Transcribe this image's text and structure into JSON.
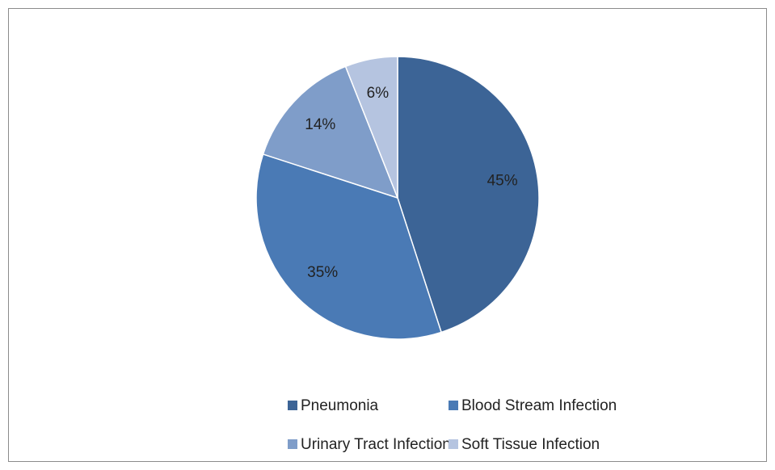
{
  "chart_data": {
    "type": "pie",
    "categories": [
      "Pneumonia",
      "Blood Stream Infection",
      "Urinary Tract Infection",
      "Soft Tissue Infection"
    ],
    "values": [
      45,
      35,
      14,
      6
    ],
    "value_labels": [
      "45%",
      "35%",
      "14%",
      "6%"
    ],
    "colors": [
      "#3c6496",
      "#4a7ab5",
      "#7f9dc9",
      "#b5c4e0"
    ],
    "legend": "bottom"
  }
}
